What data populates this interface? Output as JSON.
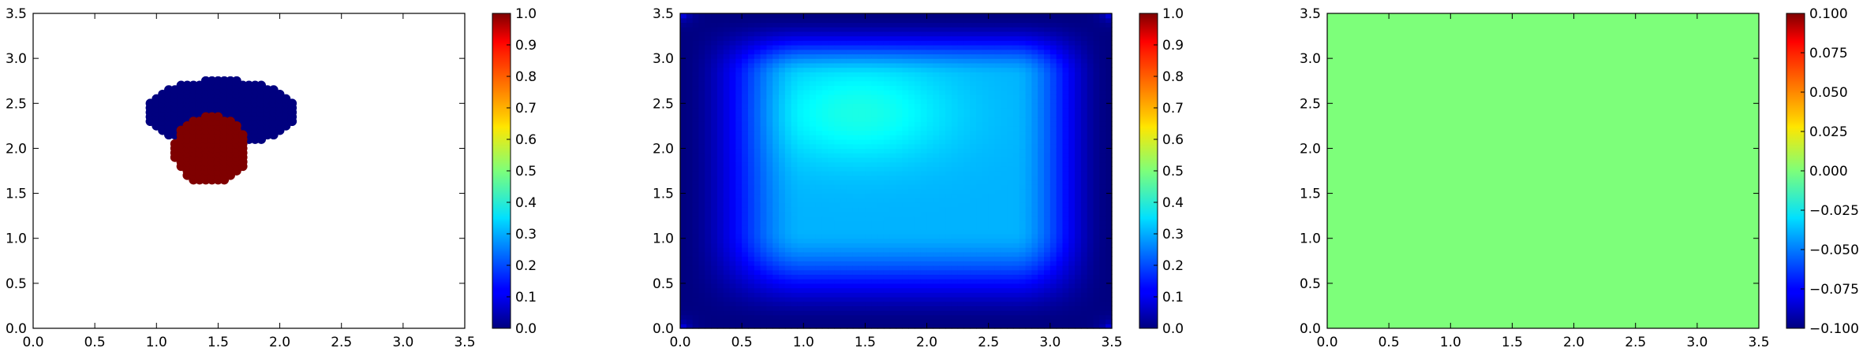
{
  "chart_data": [
    {
      "type": "scatter",
      "xlim": [
        0,
        3.5
      ],
      "ylim": [
        0,
        3.5
      ],
      "xticks": [
        "0.0",
        "0.5",
        "1.0",
        "1.5",
        "2.0",
        "2.5",
        "3.0",
        "3.5"
      ],
      "yticks": [
        "0.0",
        "0.5",
        "1.0",
        "1.5",
        "2.0",
        "2.5",
        "3.0",
        "3.5"
      ],
      "grid": false,
      "marker": "filled circle",
      "colormap": "jet",
      "series": [
        {
          "value": 0.0,
          "color": "#00007f",
          "region": {
            "shape": "ellipse",
            "center": [
              1.53,
              2.4
            ],
            "radius": [
              0.62,
              0.36
            ],
            "x_range": [
              0.9,
              2.15
            ],
            "y_range": [
              1.95,
              2.8
            ],
            "spacing": 0.05
          }
        },
        {
          "value": 1.0,
          "color": "#7f0000",
          "region": {
            "shape": "ellipse",
            "center": [
              1.44,
              1.98
            ],
            "radius": [
              0.3,
              0.38
            ],
            "x_range": [
              1.1,
              1.75
            ],
            "y_range": [
              1.6,
              2.35
            ],
            "spacing": 0.05
          }
        }
      ],
      "colorbar": {
        "range": [
          0.0,
          1.0
        ],
        "ticks": [
          "0.0",
          "0.1",
          "0.2",
          "0.3",
          "0.4",
          "0.5",
          "0.6",
          "0.7",
          "0.8",
          "0.9",
          "1.0"
        ]
      }
    },
    {
      "type": "heatmap",
      "xlim": [
        0,
        3.5
      ],
      "ylim": [
        0,
        3.5
      ],
      "xticks": [
        "0.0",
        "0.5",
        "1.0",
        "1.5",
        "2.0",
        "2.5",
        "3.0",
        "3.5"
      ],
      "yticks": [
        "0.0",
        "0.5",
        "1.0",
        "1.5",
        "2.0",
        "2.5",
        "3.0",
        "3.5"
      ],
      "grid": false,
      "colormap": "jet",
      "field": {
        "peak_location": [
          1.45,
          2.4
        ],
        "peak_value": 0.4,
        "plateau_value": 0.3,
        "plateau_x": [
          1.0,
          2.7
        ],
        "plateau_y": [
          1.1,
          2.8
        ],
        "edge_value": 0.0,
        "corner_value": 0.2
      },
      "colorbar": {
        "range": [
          0.0,
          1.0
        ],
        "ticks": [
          "0.0",
          "0.1",
          "0.2",
          "0.3",
          "0.4",
          "0.5",
          "0.6",
          "0.7",
          "0.8",
          "0.9",
          "1.0"
        ]
      }
    },
    {
      "type": "heatmap",
      "xlim": [
        0,
        3.5
      ],
      "ylim": [
        0,
        3.5
      ],
      "xticks": [
        "0.0",
        "0.5",
        "1.0",
        "1.5",
        "2.0",
        "2.5",
        "3.0",
        "3.5"
      ],
      "yticks": [
        "0.0",
        "0.5",
        "1.0",
        "1.5",
        "2.0",
        "2.5",
        "3.0",
        "3.5"
      ],
      "grid": false,
      "colormap": "jet",
      "field": {
        "uniform_value": 0.0,
        "fill_color": "#7dff7a"
      },
      "colorbar": {
        "range": [
          -0.1,
          0.1
        ],
        "ticks": [
          "−0.100",
          "−0.075",
          "−0.050",
          "−0.025",
          "0.000",
          "0.025",
          "0.050",
          "0.075",
          "0.100"
        ]
      }
    }
  ]
}
